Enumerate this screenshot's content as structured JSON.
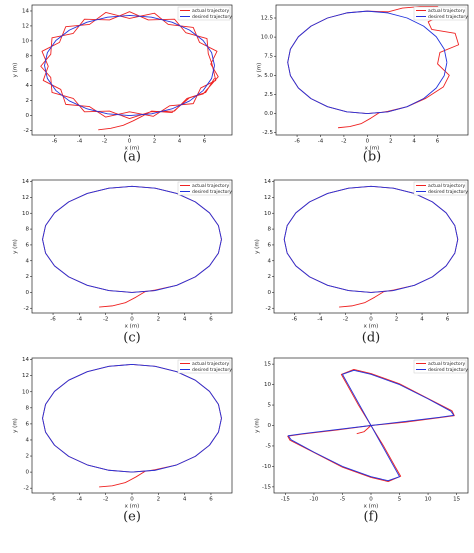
{
  "chart_data": [
    {
      "type": "line",
      "title": "(a)",
      "xlabel": "x (m)",
      "ylabel": "y (m)",
      "legend": "upper right",
      "xlim": [
        -7.8,
        8.2
      ],
      "xticks": [
        -6,
        -4,
        -2,
        0,
        2,
        4,
        6
      ],
      "ylim": [
        -2.6,
        14.8
      ],
      "yticks": [
        -2,
        0,
        2,
        4,
        6,
        8,
        10,
        12,
        14
      ],
      "series": [
        {
          "name": "actual trajectory",
          "color": "#ee2222",
          "x": [
            -2.5,
            -1.5,
            -0.5,
            0.3,
            1,
            1.76,
            3.4,
            4.81,
            5.89,
            7.1,
            6.5,
            7.0,
            5.6,
            5.1,
            3.1,
            2.0,
            0,
            -1.9,
            -3.2,
            -5.1,
            -5.6,
            -7.0,
            -6.5,
            -6.9,
            -5.5,
            -5.1,
            -3.2,
            -1.9,
            0,
            1.9,
            3.2,
            5.1,
            5.7,
            6.9,
            6.6,
            6.3,
            6.2,
            4.5,
            3.6,
            1.5,
            0,
            -1.6,
            -3.6,
            -4.5,
            -6.2,
            -6.3,
            -7.1,
            -6.3,
            -6.2,
            -4.5,
            -3.6,
            -1.6,
            0,
            1.7,
            3.6,
            4.6,
            6.1,
            6.8
          ],
          "values": [
            -1.9,
            -1.7,
            -1.3,
            -0.7,
            -0.1,
            0.6,
            0.4,
            2.4,
            2.9,
            5.2,
            6.9,
            8.6,
            9.8,
            11.8,
            12.2,
            13.7,
            13.0,
            13.8,
            12.2,
            11.9,
            9.8,
            8.6,
            6.6,
            4.7,
            3.5,
            1.5,
            1.2,
            -0.2,
            0.5,
            -0.1,
            1.3,
            1.6,
            3.7,
            4.7,
            6.9,
            8.3,
            10.3,
            11.1,
            12.9,
            12.8,
            13.9,
            12.8,
            12.9,
            11.0,
            10.4,
            8.2,
            6.6,
            5.1,
            3.1,
            2.3,
            0.5,
            0.6,
            -0.4,
            0.5,
            0.6,
            2.3,
            3.1,
            5.0
          ]
        },
        {
          "name": "desired trajectory",
          "color": "#2233dd",
          "x": [
            6.8,
            6.57,
            5.89,
            4.81,
            3.4,
            1.76,
            0,
            -1.76,
            -3.4,
            -4.81,
            -5.89,
            -6.57,
            -6.8,
            -6.57,
            -5.89,
            -4.81,
            -3.4,
            -1.76,
            0,
            1.76,
            3.4,
            4.81,
            5.89,
            6.57,
            6.8
          ],
          "values": [
            6.7,
            8.43,
            10.05,
            11.44,
            12.5,
            13.17,
            13.4,
            13.17,
            12.5,
            11.44,
            10.05,
            8.43,
            6.7,
            4.97,
            3.35,
            1.96,
            0.9,
            0.23,
            0,
            0.23,
            0.9,
            1.96,
            3.35,
            4.97,
            6.7
          ]
        }
      ]
    },
    {
      "type": "line",
      "title": "(b)",
      "xlabel": "x (m)",
      "ylabel": "y (m)",
      "legend": "upper right",
      "xlim": [
        -7.8,
        8.6
      ],
      "xticks": [
        -6,
        -4,
        -2,
        0,
        2,
        4,
        6
      ],
      "ylim": [
        -2.8,
        14.2
      ],
      "yticks": [
        -2.5,
        {
          "value": 0,
          "label": "0.0"
        },
        2.5,
        {
          "value": 5,
          "label": "5.0"
        },
        7.5,
        {
          "value": 10,
          "label": "10.0"
        },
        12.5
      ],
      "series": [
        {
          "name": "actual trajectory",
          "color": "#ee2222",
          "x": [
            -2.5,
            -1.5,
            -0.5,
            0.3,
            1,
            1.76,
            3.4,
            5,
            6.5,
            7,
            6,
            6.2,
            7.8,
            7.5,
            5.5,
            5.2,
            6.5,
            6,
            4.5,
            3,
            1.76,
            0,
            -1.76,
            -3.4,
            -4.81,
            -5.89,
            -6.57,
            -6.8,
            -6.57,
            -5.89,
            -4.81,
            -3.4,
            -1.76,
            0,
            1.76,
            3.4,
            4.81
          ],
          "values": [
            -1.85,
            -1.7,
            -1.3,
            -0.6,
            0.1,
            0.3,
            0.9,
            2,
            3.5,
            5,
            6.5,
            8,
            9,
            10.5,
            11,
            12,
            13,
            14,
            14,
            13.8,
            13.3,
            13.4,
            13.17,
            12.5,
            11.44,
            10.05,
            8.43,
            6.7,
            4.97,
            3.35,
            1.96,
            0.9,
            0.23,
            0,
            0.23,
            0.9,
            1.96
          ]
        },
        {
          "name": "desired trajectory",
          "color": "#2233dd",
          "x": [
            6.8,
            6.57,
            5.89,
            4.81,
            3.4,
            1.76,
            0,
            -1.76,
            -3.4,
            -4.81,
            -5.89,
            -6.57,
            -6.8,
            -6.57,
            -5.89,
            -4.81,
            -3.4,
            -1.76,
            0,
            1.76,
            3.4,
            4.81,
            5.89,
            6.57,
            6.8
          ],
          "values": [
            6.7,
            8.43,
            10.05,
            11.44,
            12.5,
            13.17,
            13.4,
            13.17,
            12.5,
            11.44,
            10.05,
            8.43,
            6.7,
            4.97,
            3.35,
            1.96,
            0.9,
            0.23,
            0,
            0.23,
            0.9,
            1.96,
            3.35,
            4.97,
            6.7
          ]
        }
      ]
    },
    {
      "type": "line",
      "title": "(c)",
      "xlabel": "x (m)",
      "ylabel": "y (m)",
      "legend": "upper right",
      "xlim": [
        -7.6,
        7.6
      ],
      "xticks": [
        -6,
        -4,
        -2,
        0,
        2,
        4,
        6
      ],
      "ylim": [
        -2.6,
        14.2
      ],
      "yticks": [
        -2,
        0,
        2,
        4,
        6,
        8,
        10,
        12,
        14
      ],
      "series": [
        {
          "name": "actual trajectory",
          "color": "#ee2222",
          "x": [
            -2.5,
            -1.5,
            -0.5,
            0.3,
            1,
            1.76,
            3.4,
            4.81,
            5.89,
            6.57,
            6.8,
            6.57,
            5.89,
            4.81,
            3.4,
            1.76,
            0,
            -1.76,
            -3.4,
            -4.81,
            -5.89,
            -6.57,
            -6.8,
            -6.57,
            -5.89,
            -4.81,
            -3.4,
            -1.76,
            0,
            1.76
          ],
          "values": [
            -1.85,
            -1.7,
            -1.3,
            -0.6,
            0.1,
            0.3,
            0.9,
            1.96,
            3.35,
            4.97,
            6.7,
            8.43,
            10.05,
            11.44,
            12.5,
            13.17,
            13.4,
            13.17,
            12.5,
            11.44,
            10.05,
            8.43,
            6.7,
            4.97,
            3.35,
            1.96,
            0.9,
            0.23,
            0,
            0.23
          ]
        },
        {
          "name": "desired trajectory",
          "color": "#2233dd",
          "x": [
            6.8,
            6.57,
            5.89,
            4.81,
            3.4,
            1.76,
            0,
            -1.76,
            -3.4,
            -4.81,
            -5.89,
            -6.57,
            -6.8,
            -6.57,
            -5.89,
            -4.81,
            -3.4,
            -1.76,
            0,
            1.76,
            3.4,
            4.81,
            5.89,
            6.57,
            6.8
          ],
          "values": [
            6.7,
            8.43,
            10.05,
            11.44,
            12.5,
            13.17,
            13.4,
            13.17,
            12.5,
            11.44,
            10.05,
            8.43,
            6.7,
            4.97,
            3.35,
            1.96,
            0.9,
            0.23,
            0,
            0.23,
            0.9,
            1.96,
            3.35,
            4.97,
            6.7
          ]
        }
      ]
    },
    {
      "type": "line",
      "title": "(d)",
      "xlabel": "x (m)",
      "ylabel": "y (m)",
      "legend": "upper right",
      "xlim": [
        -7.6,
        7.6
      ],
      "xticks": [
        -6,
        -4,
        -2,
        0,
        2,
        4,
        6
      ],
      "ylim": [
        -2.6,
        14.2
      ],
      "yticks": [
        -2,
        0,
        2,
        4,
        6,
        8,
        10,
        12,
        14
      ],
      "series": [
        {
          "name": "actual trajectory",
          "color": "#ee2222",
          "x": [
            -2.5,
            -1.5,
            -0.5,
            0.3,
            1,
            1.76,
            3.4,
            4.81,
            5.89,
            6.57,
            6.8,
            6.57,
            5.89,
            4.81,
            3.4,
            1.76,
            0,
            -1.76,
            -3.4,
            -4.81,
            -5.89,
            -6.57,
            -6.8,
            -6.57,
            -5.89,
            -4.81,
            -3.4,
            -1.76,
            0,
            1.76
          ],
          "values": [
            -1.85,
            -1.7,
            -1.3,
            -0.6,
            0.1,
            0.3,
            0.9,
            1.96,
            3.35,
            4.97,
            6.7,
            8.43,
            10.05,
            11.44,
            12.5,
            13.17,
            13.4,
            13.17,
            12.5,
            11.44,
            10.05,
            8.43,
            6.7,
            4.97,
            3.35,
            1.96,
            0.9,
            0.23,
            0,
            0.23
          ]
        },
        {
          "name": "desired trajectory",
          "color": "#2233dd",
          "x": [
            6.8,
            6.57,
            5.89,
            4.81,
            3.4,
            1.76,
            0,
            -1.76,
            -3.4,
            -4.81,
            -5.89,
            -6.57,
            -6.8,
            -6.57,
            -5.89,
            -4.81,
            -3.4,
            -1.76,
            0,
            1.76,
            3.4,
            4.81,
            5.89,
            6.57,
            6.8
          ],
          "values": [
            6.7,
            8.43,
            10.05,
            11.44,
            12.5,
            13.17,
            13.4,
            13.17,
            12.5,
            11.44,
            10.05,
            8.43,
            6.7,
            4.97,
            3.35,
            1.96,
            0.9,
            0.23,
            0,
            0.23,
            0.9,
            1.96,
            3.35,
            4.97,
            6.7
          ]
        }
      ]
    },
    {
      "type": "line",
      "title": "(e)",
      "xlabel": "x (m)",
      "ylabel": "y (m)",
      "legend": "upper right",
      "xlim": [
        -7.6,
        7.6
      ],
      "xticks": [
        -6,
        -4,
        -2,
        0,
        2,
        4,
        6
      ],
      "ylim": [
        -2.6,
        14.2
      ],
      "yticks": [
        -2,
        0,
        2,
        4,
        6,
        8,
        10,
        12,
        14
      ],
      "series": [
        {
          "name": "actual trajectory",
          "color": "#ee2222",
          "x": [
            -2.5,
            -1.5,
            -0.5,
            0.3,
            1,
            1.76,
            3.4,
            4.81,
            5.89,
            6.57,
            6.8,
            6.57,
            5.89,
            4.81,
            3.4,
            1.76,
            0,
            -1.76,
            -3.4,
            -4.81,
            -5.89,
            -6.57,
            -6.8,
            -6.57,
            -5.89,
            -4.81,
            -3.4,
            -1.76,
            0,
            1.76
          ],
          "values": [
            -1.85,
            -1.7,
            -1.3,
            -0.6,
            0.1,
            0.3,
            0.9,
            1.96,
            3.35,
            4.97,
            6.7,
            8.43,
            10.05,
            11.44,
            12.5,
            13.17,
            13.4,
            13.17,
            12.5,
            11.44,
            10.05,
            8.43,
            6.7,
            4.97,
            3.35,
            1.96,
            0.9,
            0.23,
            0,
            0.23
          ]
        },
        {
          "name": "desired trajectory",
          "color": "#2233dd",
          "x": [
            6.8,
            6.57,
            5.89,
            4.81,
            3.4,
            1.76,
            0,
            -1.76,
            -3.4,
            -4.81,
            -5.89,
            -6.57,
            -6.8,
            -6.57,
            -5.89,
            -4.81,
            -3.4,
            -1.76,
            0,
            1.76,
            3.4,
            4.81,
            5.89,
            6.57,
            6.8
          ],
          "values": [
            6.7,
            8.43,
            10.05,
            11.44,
            12.5,
            13.17,
            13.4,
            13.17,
            12.5,
            11.44,
            10.05,
            8.43,
            6.7,
            4.97,
            3.35,
            1.96,
            0.9,
            0.23,
            0,
            0.23,
            0.9,
            1.96,
            3.35,
            4.97,
            6.7
          ]
        }
      ]
    },
    {
      "type": "line",
      "title": "(f)",
      "xlabel": "x (m)",
      "ylabel": "y (m)",
      "legend": "upper right",
      "xlim": [
        -17,
        17
      ],
      "xticks": [
        -15,
        -10,
        -5,
        0,
        5,
        10,
        15
      ],
      "ylim": [
        -16.5,
        16.5
      ],
      "yticks": [
        -15,
        -10,
        -5,
        0,
        5,
        10,
        15
      ],
      "series": [
        {
          "name": "actual trajectory",
          "color": "#ee2222",
          "x": [
            -2.5,
            -1.2,
            0,
            -2.2,
            -4.2,
            -5.2,
            -3,
            0,
            5,
            10,
            14.2,
            14.6,
            12,
            6,
            0,
            -6,
            -12,
            -14.6,
            -14.2,
            -10,
            -5,
            0,
            3,
            5.2,
            4.2,
            2.2,
            0
          ],
          "values": [
            -2,
            -1.5,
            0,
            5,
            10,
            12.5,
            13.7,
            12.7,
            10.2,
            6.6,
            3.6,
            2.4,
            1.9,
            0.8,
            0,
            -1.1,
            -2.1,
            -2.6,
            -3.6,
            -6.6,
            -10.2,
            -12.7,
            -13.7,
            -12.4,
            -10,
            -5,
            0
          ]
        },
        {
          "name": "desired trajectory",
          "color": "#2233dd",
          "x": [
            0,
            -2,
            -4,
            -5,
            -3,
            0,
            5,
            10,
            14,
            14.5,
            12,
            6,
            0,
            -6,
            -12,
            -14.5,
            -14,
            -10,
            -5,
            0,
            3,
            5,
            4,
            2,
            0
          ],
          "values": [
            0,
            5,
            10,
            12.5,
            13.5,
            12.5,
            10,
            6.5,
            3.5,
            2.5,
            2,
            1,
            0,
            -1,
            -2,
            -2.5,
            -3.5,
            -6.5,
            -10,
            -12.5,
            -13.5,
            -12.5,
            -10,
            -5,
            0
          ]
        }
      ]
    }
  ]
}
